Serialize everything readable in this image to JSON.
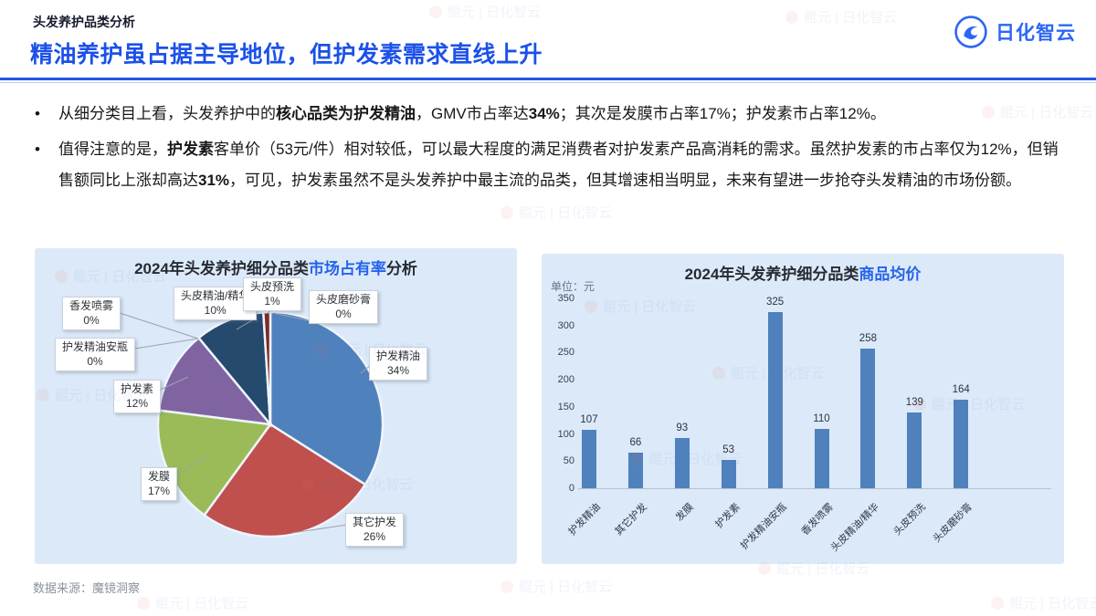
{
  "page": {
    "kicker": "头发养护品类分析",
    "title": "精油养护虽占据主导地位，但护发素需求直线上升",
    "brand": {
      "name": "日化智云",
      "color": "#2b66f6"
    },
    "source": "数据来源：魔镜洞察",
    "watermark": "鲲元 | 日化智云",
    "accent_color": "#2356e6"
  },
  "bullets": [
    [
      {
        "t": "从细分类目上看，头发养护中的"
      },
      {
        "t": "核心品类为护发精油",
        "b": true
      },
      {
        "t": "，GMV市占率达"
      },
      {
        "t": "34%",
        "b": true
      },
      {
        "t": "；其次是发膜市占率17%；护发素市占率12%。"
      }
    ],
    [
      {
        "t": "值得注意的是，"
      },
      {
        "t": "护发素",
        "b": true
      },
      {
        "t": "客单价（53元/件）相对较低，可以最大程度的满足消费者对护发素产品高消耗的需求。虽然护发素的市占率仅为12%，但销售额同比上涨却高达"
      },
      {
        "t": "31%",
        "b": true
      },
      {
        "t": "，可见，护发素虽然不是头发养护中最主流的品类，但其增速相当明显，未来有望进一步抢夺头发精油的市场份额。"
      }
    ]
  ],
  "chart_data": [
    {
      "type": "pie",
      "title_plain": "2024年头发养护细分品类",
      "title_accent": "市场占有率",
      "title_tail": "分析",
      "legend_position": "callouts",
      "grid": false,
      "slices": [
        {
          "label": "护发精油",
          "value": 34,
          "color": "#4f81bd"
        },
        {
          "label": "其它护发",
          "value": 26,
          "color": "#c0504d"
        },
        {
          "label": "发膜",
          "value": 17,
          "color": "#9bbb59"
        },
        {
          "label": "护发素",
          "value": 12,
          "color": "#8064a2"
        },
        {
          "label": "护发精油安瓶",
          "value": 0,
          "color": "#4bacc6"
        },
        {
          "label": "香发喷雾",
          "value": 0,
          "color": "#f79646"
        },
        {
          "label": "头皮精油/精华",
          "value": 10,
          "color": "#26496e"
        },
        {
          "label": "头皮预洗",
          "value": 1,
          "color": "#7c2a26"
        },
        {
          "label": "头皮磨砂膏",
          "value": 0,
          "color": "#4aacc5"
        }
      ],
      "callouts": [
        {
          "slice": 0,
          "box": [
            366,
            108
          ],
          "line": [
            368,
            128,
            357,
            137
          ]
        },
        {
          "slice": 1,
          "box": [
            340,
            290
          ],
          "line": [
            342,
            303,
            282,
            312
          ]
        },
        {
          "slice": 2,
          "box": [
            116,
            240
          ],
          "line": [
            163,
            244,
            191,
            226
          ]
        },
        {
          "slice": 3,
          "box": [
            86,
            144
          ],
          "line": [
            133,
            157,
            168,
            141
          ]
        },
        {
          "slice": 4,
          "box": [
            22,
            98
          ],
          "line": [
            97,
            112,
            179,
            99
          ]
        },
        {
          "slice": 5,
          "box": [
            30,
            53
          ],
          "line": [
            90,
            70,
            179,
            99
          ]
        },
        {
          "slice": 6,
          "box": [
            152,
            42
          ],
          "line": [
            243,
            76,
            221,
            89
          ]
        },
        {
          "slice": 7,
          "box": [
            228,
            32
          ],
          "line": [
            261,
            66,
            255,
            71
          ]
        },
        {
          "slice": 8,
          "box": [
            300,
            46
          ],
          "line": [
            303,
            80,
            261,
            71
          ]
        }
      ]
    },
    {
      "type": "bar",
      "title_plain": "2024年头发养护细分品类",
      "title_accent": "商品均价",
      "title_tail": "",
      "unit": "单位：元",
      "categories": [
        "护发精油",
        "其它护发",
        "发膜",
        "护发素",
        "护发精油安瓶",
        "香发喷雾",
        "头皮精油/精华",
        "头皮预洗",
        "头皮磨砂膏"
      ],
      "values": [
        107,
        66,
        93,
        53,
        325,
        110,
        258,
        139,
        164
      ],
      "ylim": [
        0,
        350
      ],
      "yticks": [
        0,
        50,
        100,
        150,
        200,
        250,
        300,
        350
      ],
      "bar_color": "#4f81bd",
      "grid": false
    }
  ]
}
